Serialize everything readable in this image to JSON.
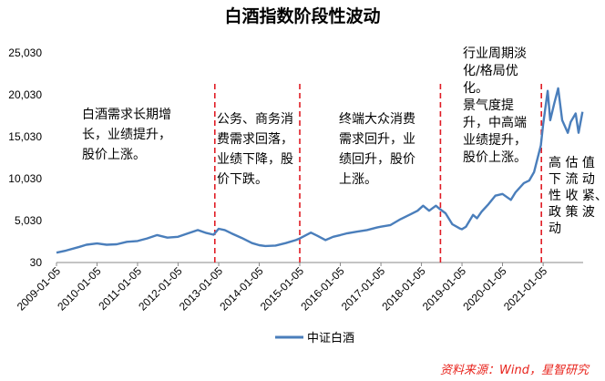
{
  "chart_data": {
    "type": "line",
    "title": "白酒指数阶段性波动",
    "x_ticks": [
      "2009-01-05",
      "2010-01-05",
      "2011-01-05",
      "2012-01-05",
      "2013-01-05",
      "2014-01-05",
      "2015-01-05",
      "2016-01-05",
      "2017-01-05",
      "2018-01-05",
      "2019-01-05",
      "2020-01-05",
      "2021-01-05"
    ],
    "y_ticks": [
      "30",
      "5,030",
      "10,030",
      "15,030",
      "20,030",
      "25,030"
    ],
    "ylim": [
      30,
      25030
    ],
    "xlim": [
      "2009-01-05",
      "2021-12-31"
    ],
    "series": [
      {
        "name": "中证白酒",
        "color": "#4a7ebb",
        "x": [
          "2009-01-05",
          "2009-04-01",
          "2009-08-01",
          "2009-10-01",
          "2010-01-05",
          "2010-04-01",
          "2010-07-01",
          "2010-10-01",
          "2011-01-05",
          "2011-04-01",
          "2011-07-01",
          "2011-10-01",
          "2012-01-05",
          "2012-04-01",
          "2012-07-01",
          "2012-09-15",
          "2012-11-20",
          "2013-01-05",
          "2013-03-01",
          "2013-05-01",
          "2013-08-01",
          "2013-11-01",
          "2014-01-05",
          "2014-03-01",
          "2014-06-01",
          "2014-09-01",
          "2014-12-01",
          "2015-01-05",
          "2015-04-15",
          "2015-06-15",
          "2015-08-25",
          "2015-11-01",
          "2016-01-05",
          "2016-03-01",
          "2016-06-01",
          "2016-09-01",
          "2016-12-01",
          "2017-01-05",
          "2017-04-01",
          "2017-07-01",
          "2017-10-01",
          "2017-12-01",
          "2018-01-20",
          "2018-03-15",
          "2018-05-15",
          "2018-06-20",
          "2018-08-10",
          "2018-10-10",
          "2018-12-15",
          "2019-01-05",
          "2019-02-10",
          "2019-04-15",
          "2019-05-20",
          "2019-07-01",
          "2019-09-01",
          "2019-11-01",
          "2020-01-05",
          "2020-03-20",
          "2020-05-01",
          "2020-07-15",
          "2020-09-01",
          "2020-10-15",
          "2020-12-15",
          "2021-01-05",
          "2021-02-15",
          "2021-03-10",
          "2021-04-15",
          "2021-05-20",
          "2021-06-25",
          "2021-08-15",
          "2021-09-10",
          "2021-10-25",
          "2021-11-20",
          "2021-12-25"
        ],
        "values": [
          1200,
          1450,
          1900,
          2150,
          2300,
          2150,
          2200,
          2500,
          2600,
          2900,
          3300,
          3000,
          3100,
          3500,
          3900,
          3550,
          3350,
          4050,
          3900,
          3500,
          2950,
          2350,
          2100,
          2000,
          2050,
          2350,
          2700,
          2900,
          3600,
          3200,
          2700,
          3100,
          3300,
          3500,
          3700,
          3900,
          4200,
          4300,
          4500,
          5200,
          5800,
          6200,
          6800,
          6200,
          6800,
          6400,
          5900,
          4600,
          4100,
          4000,
          4300,
          5700,
          5300,
          6100,
          7000,
          8000,
          8200,
          7500,
          8400,
          9500,
          9800,
          10800,
          14000,
          16500,
          20500,
          17000,
          19000,
          20800,
          17000,
          15500,
          16800,
          17800,
          15500,
          18000
        ]
      }
    ],
    "vertical_lines": [
      "2012-12-01",
      "2015-01-05",
      "2018-06-25",
      "2020-12-20"
    ],
    "annotations": [
      {
        "lines": [
          "白酒需求长期增",
          "长，业绩提升，",
          "股价上涨。"
        ]
      },
      {
        "lines": [
          "公务、商务消",
          "费需求回落，",
          "业绩下降，股",
          "价下跌。"
        ]
      },
      {
        "lines": [
          "终端大众消费",
          "需求回升，业",
          "绩回升，股价",
          "上涨。"
        ]
      },
      {
        "lines": [
          "行业周期淡",
          "化/格局优",
          "化。",
          "景气度提",
          "升，中高端",
          "业绩提升，",
          "股价上涨。"
        ]
      },
      {
        "lines": [
          "高 估 值",
          "下 流 动",
          "性 收 紧、",
          "政 策 波",
          "动"
        ]
      }
    ],
    "legend": "bottom-center",
    "source": "资料来源：Wind，星智研究",
    "grid": false
  }
}
